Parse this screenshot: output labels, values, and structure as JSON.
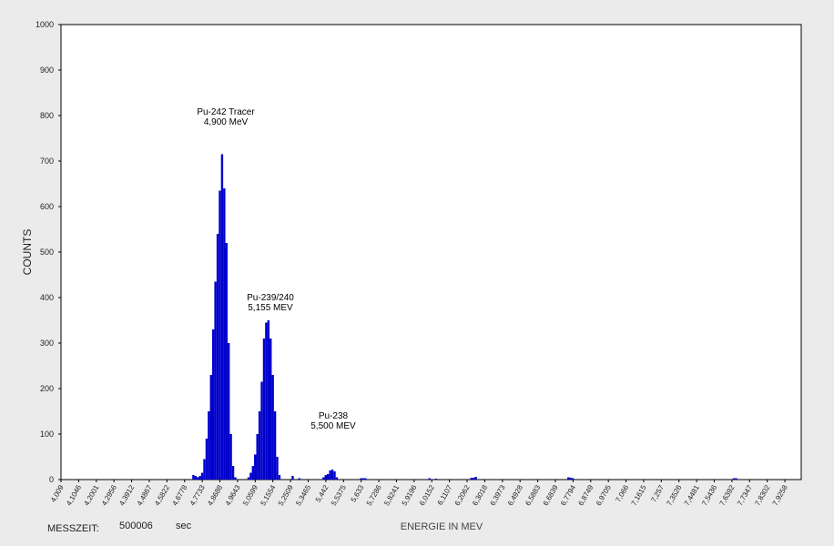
{
  "chart_data": {
    "type": "bar",
    "x_label": "ENERGIE IN MEV",
    "y_label": "COUNTS",
    "color": "#0000cc",
    "x": [
      4.7253,
      4.7372,
      4.7491,
      4.7611,
      4.773,
      4.7849,
      4.7969,
      4.8088,
      4.8208,
      4.8327,
      4.8446,
      4.8566,
      4.8685,
      4.8805,
      4.8924,
      4.9043,
      4.9163,
      4.9282,
      4.9402,
      4.9521,
      5.0237,
      5.0357,
      5.0476,
      5.0595,
      5.0715,
      5.0834,
      5.0954,
      5.1073,
      5.1192,
      5.1312,
      5.1431,
      5.1551,
      5.167,
      5.1789,
      5.1909,
      5.2625,
      5.2984,
      5.4296,
      5.4415,
      5.4534,
      5.4654,
      5.4773,
      5.4893,
      5.5012,
      5.6325,
      5.6445,
      5.6564,
      6.0026,
      6.0384,
      6.2294,
      6.2413,
      6.2533,
      6.7546,
      6.7666,
      6.7785,
      7.6499,
      7.6618
    ],
    "values": [
      10,
      8,
      5,
      8,
      15,
      45,
      90,
      150,
      230,
      330,
      435,
      540,
      635,
      715,
      640,
      520,
      300,
      100,
      30,
      5,
      5,
      15,
      30,
      55,
      100,
      150,
      215,
      310,
      345,
      350,
      310,
      230,
      150,
      50,
      10,
      8,
      3,
      5,
      10,
      12,
      20,
      22,
      18,
      5,
      3,
      3,
      3,
      3,
      2,
      4,
      4,
      6,
      5,
      4,
      3,
      3,
      3
    ],
    "xlim": [
      4.009,
      8.014
    ],
    "ylim": [
      0,
      1000
    ],
    "yticks": [
      0,
      100,
      200,
      300,
      400,
      500,
      600,
      700,
      800,
      900,
      1000
    ],
    "xticks": [
      {
        "value": 4.009,
        "label": "4,009"
      },
      {
        "value": 4.1046,
        "label": "4,1046"
      },
      {
        "value": 4.2001,
        "label": "4,2001"
      },
      {
        "value": 4.2956,
        "label": "4,2956"
      },
      {
        "value": 4.3912,
        "label": "4,3912"
      },
      {
        "value": 4.4867,
        "label": "4,4867"
      },
      {
        "value": 4.5822,
        "label": "4,5822"
      },
      {
        "value": 4.6778,
        "label": "4,6778"
      },
      {
        "value": 4.7733,
        "label": "4,7733"
      },
      {
        "value": 4.8688,
        "label": "4,8688"
      },
      {
        "value": 4.9643,
        "label": "4,9643"
      },
      {
        "value": 5.0599,
        "label": "5,0599"
      },
      {
        "value": 5.1554,
        "label": "5,1554"
      },
      {
        "value": 5.2509,
        "label": "5,2509"
      },
      {
        "value": 5.3465,
        "label": "5,3465"
      },
      {
        "value": 5.442,
        "label": "5,442"
      },
      {
        "value": 5.5375,
        "label": "5,5375"
      },
      {
        "value": 5.633,
        "label": "5,633"
      },
      {
        "value": 5.7286,
        "label": "5,7286"
      },
      {
        "value": 5.8241,
        "label": "5,8241"
      },
      {
        "value": 5.9196,
        "label": "5,9196"
      },
      {
        "value": 6.0152,
        "label": "6,0152"
      },
      {
        "value": 6.1107,
        "label": "6,1107"
      },
      {
        "value": 6.2062,
        "label": "6,2062"
      },
      {
        "value": 6.3018,
        "label": "6,3018"
      },
      {
        "value": 6.3973,
        "label": "6,3973"
      },
      {
        "value": 6.4928,
        "label": "6,4928"
      },
      {
        "value": 6.5883,
        "label": "6,5883"
      },
      {
        "value": 6.6839,
        "label": "6,6839"
      },
      {
        "value": 6.7794,
        "label": "6,7794"
      },
      {
        "value": 6.8749,
        "label": "6,8749"
      },
      {
        "value": 6.9705,
        "label": "6,9705"
      },
      {
        "value": 7.066,
        "label": "7,066"
      },
      {
        "value": 7.1615,
        "label": "7,1615"
      },
      {
        "value": 7.257,
        "label": "7,257"
      },
      {
        "value": 7.3526,
        "label": "7,3526"
      },
      {
        "value": 7.4481,
        "label": "7,4481"
      },
      {
        "value": 7.5436,
        "label": "7,5436"
      },
      {
        "value": 7.6392,
        "label": "7,6392"
      },
      {
        "value": 7.7347,
        "label": "7,7347"
      },
      {
        "value": 7.8302,
        "label": "7,8302"
      },
      {
        "value": 7.9258,
        "label": "7,9258"
      }
    ],
    "annotations": [
      {
        "lines": [
          "Pu-242 Tracer",
          "4,900 MeV"
        ]
      },
      {
        "lines": [
          "Pu-239/240",
          "5,155 MEV"
        ]
      },
      {
        "lines": [
          "Pu-238",
          "5,500 MEV"
        ]
      }
    ],
    "footer": {
      "label": "MESSZEIT:",
      "value": "500006",
      "unit": "sec"
    }
  }
}
